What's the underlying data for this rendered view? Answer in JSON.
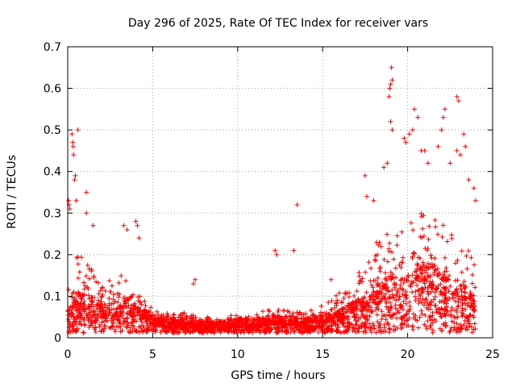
{
  "chart_data": {
    "type": "scatter",
    "title": "Day 296 of 2025, Rate Of TEC Index for receiver vars",
    "xlabel": "GPS time / hours",
    "ylabel": "ROTI / TECUs",
    "xlim": [
      0,
      25
    ],
    "ylim": [
      0,
      0.7
    ],
    "xticks": [
      0,
      5,
      10,
      15,
      20,
      25
    ],
    "xtick_labels": [
      "0",
      "5",
      "10",
      "15",
      "20",
      "25"
    ],
    "yticks": [
      0,
      0.1,
      0.2,
      0.3,
      0.4,
      0.5,
      0.6,
      0.7
    ],
    "ytick_labels": [
      "0",
      "0.1",
      "0.2",
      "0.3",
      "0.4",
      "0.5",
      "0.6",
      "0.7"
    ],
    "grid": true,
    "marker": "+",
    "series_color": "#ff0000",
    "envelope_hours": [
      0,
      0.5,
      1,
      1.5,
      2,
      2.5,
      3,
      3.5,
      4,
      4.5,
      5,
      6,
      7,
      8,
      9,
      10,
      11,
      12,
      13,
      14,
      15,
      15.5,
      16,
      16.5,
      17,
      17.5,
      18,
      18.5,
      19,
      19.5,
      20,
      20.5,
      21,
      21.5,
      22,
      22.5,
      23,
      23.5,
      24
    ],
    "envelope_median": [
      0.04,
      0.07,
      0.07,
      0.06,
      0.05,
      0.05,
      0.06,
      0.06,
      0.05,
      0.04,
      0.03,
      0.025,
      0.025,
      0.02,
      0.02,
      0.025,
      0.025,
      0.03,
      0.03,
      0.025,
      0.03,
      0.04,
      0.04,
      0.05,
      0.06,
      0.07,
      0.08,
      0.09,
      0.1,
      0.1,
      0.1,
      0.11,
      0.12,
      0.12,
      0.11,
      0.1,
      0.09,
      0.08,
      0.06
    ],
    "envelope_p95": [
      0.18,
      0.22,
      0.2,
      0.16,
      0.13,
      0.14,
      0.16,
      0.15,
      0.12,
      0.09,
      0.07,
      0.06,
      0.06,
      0.05,
      0.05,
      0.06,
      0.06,
      0.07,
      0.07,
      0.06,
      0.08,
      0.1,
      0.11,
      0.13,
      0.17,
      0.2,
      0.22,
      0.25,
      0.28,
      0.27,
      0.28,
      0.3,
      0.3,
      0.3,
      0.28,
      0.26,
      0.24,
      0.22,
      0.18
    ],
    "outliers": [
      [
        0.05,
        0.33
      ],
      [
        0.08,
        0.32
      ],
      [
        0.12,
        0.31
      ],
      [
        0.25,
        0.49
      ],
      [
        0.3,
        0.47
      ],
      [
        0.32,
        0.46
      ],
      [
        0.35,
        0.44
      ],
      [
        0.4,
        0.38
      ],
      [
        0.45,
        0.39
      ],
      [
        0.5,
        0.33
      ],
      [
        0.6,
        0.5
      ],
      [
        1.1,
        0.35
      ],
      [
        1.1,
        0.3
      ],
      [
        1.5,
        0.27
      ],
      [
        3.3,
        0.27
      ],
      [
        3.5,
        0.26
      ],
      [
        4.0,
        0.28
      ],
      [
        4.1,
        0.27
      ],
      [
        4.2,
        0.24
      ],
      [
        7.4,
        0.13
      ],
      [
        7.5,
        0.14
      ],
      [
        12.2,
        0.21
      ],
      [
        12.3,
        0.2
      ],
      [
        13.3,
        0.21
      ],
      [
        13.5,
        0.32
      ],
      [
        15.5,
        0.14
      ],
      [
        17.5,
        0.39
      ],
      [
        17.6,
        0.34
      ],
      [
        18.0,
        0.33
      ],
      [
        18.6,
        0.41
      ],
      [
        18.8,
        0.42
      ],
      [
        18.9,
        0.58
      ],
      [
        18.95,
        0.6
      ],
      [
        19.0,
        0.61
      ],
      [
        19.05,
        0.65
      ],
      [
        19.1,
        0.62
      ],
      [
        19.0,
        0.52
      ],
      [
        19.1,
        0.5
      ],
      [
        19.8,
        0.48
      ],
      [
        19.9,
        0.47
      ],
      [
        20.1,
        0.49
      ],
      [
        20.3,
        0.5
      ],
      [
        20.4,
        0.55
      ],
      [
        20.6,
        0.53
      ],
      [
        20.8,
        0.45
      ],
      [
        21.0,
        0.45
      ],
      [
        21.2,
        0.42
      ],
      [
        21.8,
        0.46
      ],
      [
        22.0,
        0.5
      ],
      [
        22.1,
        0.53
      ],
      [
        22.2,
        0.55
      ],
      [
        22.5,
        0.42
      ],
      [
        22.9,
        0.45
      ],
      [
        22.9,
        0.58
      ],
      [
        23.0,
        0.57
      ],
      [
        23.1,
        0.44
      ],
      [
        23.3,
        0.49
      ],
      [
        23.4,
        0.46
      ],
      [
        23.6,
        0.38
      ],
      [
        23.9,
        0.36
      ],
      [
        24.0,
        0.33
      ]
    ]
  }
}
